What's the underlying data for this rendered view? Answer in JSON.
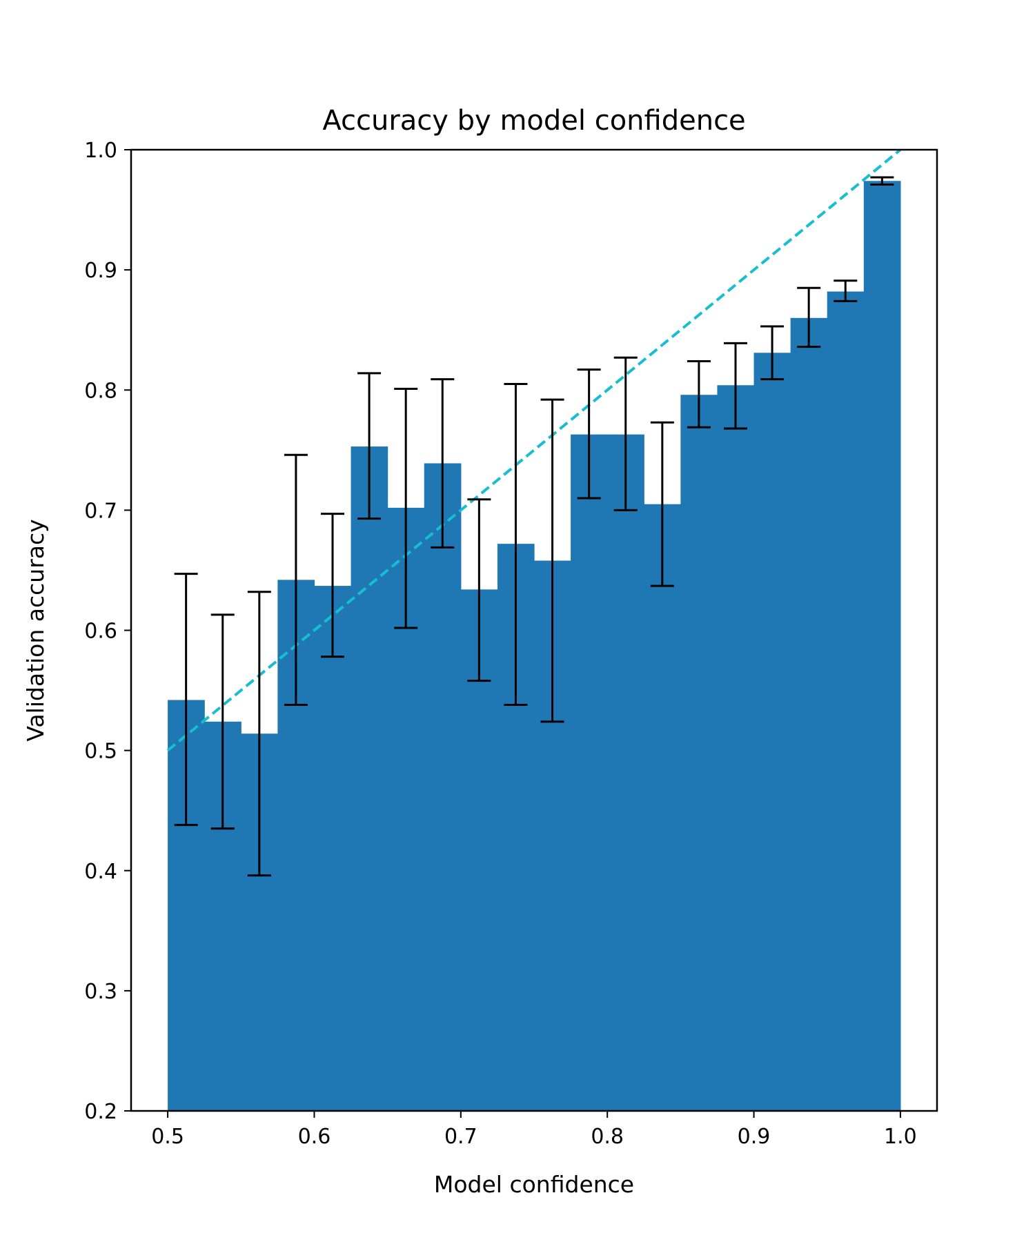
{
  "chart_data": {
    "type": "bar",
    "title": "Accuracy by model confidence",
    "xlabel": "Model confidence",
    "ylabel": "Validation accuracy",
    "xlim": [
      0.475,
      1.025
    ],
    "ylim": [
      0.2,
      1.0
    ],
    "x_ticks": [
      "0.5",
      "0.6",
      "0.7",
      "0.8",
      "0.9",
      "1.0"
    ],
    "y_ticks": [
      "0.2",
      "0.3",
      "0.4",
      "0.5",
      "0.6",
      "0.7",
      "0.8",
      "0.9",
      "1.0"
    ],
    "grid": false,
    "bin_width": 0.025,
    "bins": [
      {
        "x_start": 0.5,
        "x_end": 0.525,
        "value": 0.542,
        "err_low": 0.438,
        "err_high": 0.647
      },
      {
        "x_start": 0.525,
        "x_end": 0.55,
        "value": 0.524,
        "err_low": 0.435,
        "err_high": 0.613
      },
      {
        "x_start": 0.55,
        "x_end": 0.575,
        "value": 0.514,
        "err_low": 0.396,
        "err_high": 0.632
      },
      {
        "x_start": 0.575,
        "x_end": 0.6,
        "value": 0.642,
        "err_low": 0.538,
        "err_high": 0.746
      },
      {
        "x_start": 0.6,
        "x_end": 0.625,
        "value": 0.637,
        "err_low": 0.578,
        "err_high": 0.697
      },
      {
        "x_start": 0.625,
        "x_end": 0.65,
        "value": 0.753,
        "err_low": 0.693,
        "err_high": 0.814
      },
      {
        "x_start": 0.65,
        "x_end": 0.675,
        "value": 0.702,
        "err_low": 0.602,
        "err_high": 0.801
      },
      {
        "x_start": 0.675,
        "x_end": 0.7,
        "value": 0.739,
        "err_low": 0.669,
        "err_high": 0.809
      },
      {
        "x_start": 0.7,
        "x_end": 0.725,
        "value": 0.634,
        "err_low": 0.558,
        "err_high": 0.709
      },
      {
        "x_start": 0.725,
        "x_end": 0.75,
        "value": 0.672,
        "err_low": 0.538,
        "err_high": 0.805
      },
      {
        "x_start": 0.75,
        "x_end": 0.775,
        "value": 0.658,
        "err_low": 0.524,
        "err_high": 0.792
      },
      {
        "x_start": 0.775,
        "x_end": 0.8,
        "value": 0.763,
        "err_low": 0.71,
        "err_high": 0.817
      },
      {
        "x_start": 0.8,
        "x_end": 0.825,
        "value": 0.763,
        "err_low": 0.7,
        "err_high": 0.827
      },
      {
        "x_start": 0.825,
        "x_end": 0.85,
        "value": 0.705,
        "err_low": 0.637,
        "err_high": 0.773
      },
      {
        "x_start": 0.85,
        "x_end": 0.875,
        "value": 0.796,
        "err_low": 0.769,
        "err_high": 0.824
      },
      {
        "x_start": 0.875,
        "x_end": 0.9,
        "value": 0.804,
        "err_low": 0.768,
        "err_high": 0.839
      },
      {
        "x_start": 0.9,
        "x_end": 0.925,
        "value": 0.831,
        "err_low": 0.809,
        "err_high": 0.853
      },
      {
        "x_start": 0.925,
        "x_end": 0.95,
        "value": 0.86,
        "err_low": 0.836,
        "err_high": 0.885
      },
      {
        "x_start": 0.95,
        "x_end": 0.975,
        "value": 0.882,
        "err_low": 0.874,
        "err_high": 0.891
      },
      {
        "x_start": 0.975,
        "x_end": 1.0,
        "value": 0.974,
        "err_low": 0.971,
        "err_high": 0.977
      }
    ],
    "reference_line": {
      "x": [
        0.5,
        1.0
      ],
      "y": [
        0.5,
        1.0
      ],
      "style": "dashed",
      "color": "#17becf"
    },
    "colors": {
      "bar": "#1f77b4",
      "error_bar": "#000000",
      "reference": "#17becf",
      "axes": "#000000"
    }
  }
}
